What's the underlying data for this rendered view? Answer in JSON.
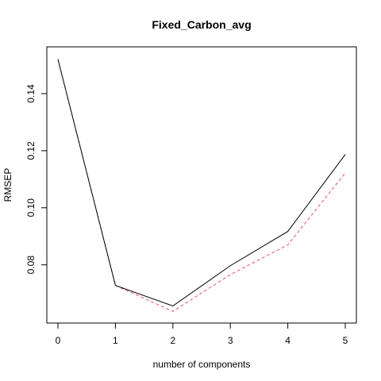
{
  "chart_data": {
    "type": "line",
    "title": "Fixed_Carbon_avg",
    "xlabel": "number of components",
    "ylabel": "RMSEP",
    "x": [
      0,
      1,
      2,
      3,
      4,
      5
    ],
    "xticks": [
      "0",
      "1",
      "2",
      "3",
      "4",
      "5"
    ],
    "yticks": [
      "0.08",
      "0.10",
      "0.12",
      "0.14"
    ],
    "xlim": [
      0,
      5
    ],
    "ylim": [
      0.0635,
      0.1525
    ],
    "grid": false,
    "legend": "none",
    "series": [
      {
        "values": [
          0.152,
          0.0728,
          0.0656,
          0.0797,
          0.0917,
          0.1187
        ],
        "color": "#000000",
        "style": "solid"
      },
      {
        "values": [
          0.152,
          0.0728,
          0.0637,
          0.0766,
          0.087,
          0.1122
        ],
        "color": "#df536b",
        "style": "dashed"
      }
    ]
  }
}
